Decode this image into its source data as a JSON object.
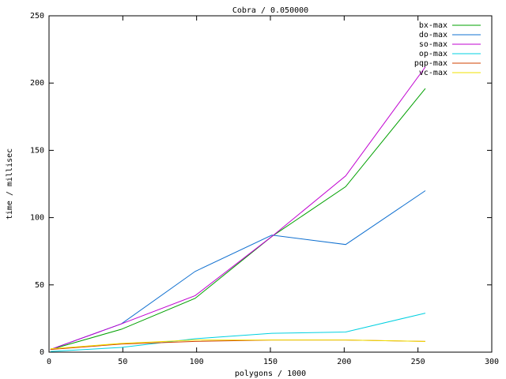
{
  "chart_data": {
    "type": "line",
    "title": "Cobra / 0.050000",
    "x_label": "polygons / 1000",
    "y_label": "time / millisec",
    "x": [
      1,
      49,
      99,
      151,
      201,
      255
    ],
    "series": [
      {
        "name": "bx-max",
        "color": "#00a000",
        "values": [
          2,
          17,
          40,
          86,
          123,
          196
        ]
      },
      {
        "name": "do-max",
        "color": "#1070d0",
        "values": [
          2,
          21,
          60,
          87,
          80,
          120
        ]
      },
      {
        "name": "so-max",
        "color": "#c000d0",
        "values": [
          2,
          21,
          42,
          86,
          131,
          212
        ]
      },
      {
        "name": "op-max",
        "color": "#00d0e0",
        "values": [
          0.5,
          3.5,
          10,
          14,
          15,
          29
        ]
      },
      {
        "name": "pqp-max",
        "color": "#d04000",
        "values": [
          2,
          6,
          8,
          9,
          9,
          8
        ]
      },
      {
        "name": "vc-max",
        "color": "#f0e000",
        "values": [
          2.5,
          6.5,
          9,
          9,
          9,
          8
        ]
      }
    ],
    "xlim": [
      0,
      300
    ],
    "ylim": [
      0,
      250
    ],
    "xticks": [
      0,
      50,
      100,
      150,
      200,
      250,
      300
    ],
    "yticks": [
      0,
      50,
      100,
      150,
      200,
      250
    ],
    "grid": false,
    "legend": "top-right"
  }
}
